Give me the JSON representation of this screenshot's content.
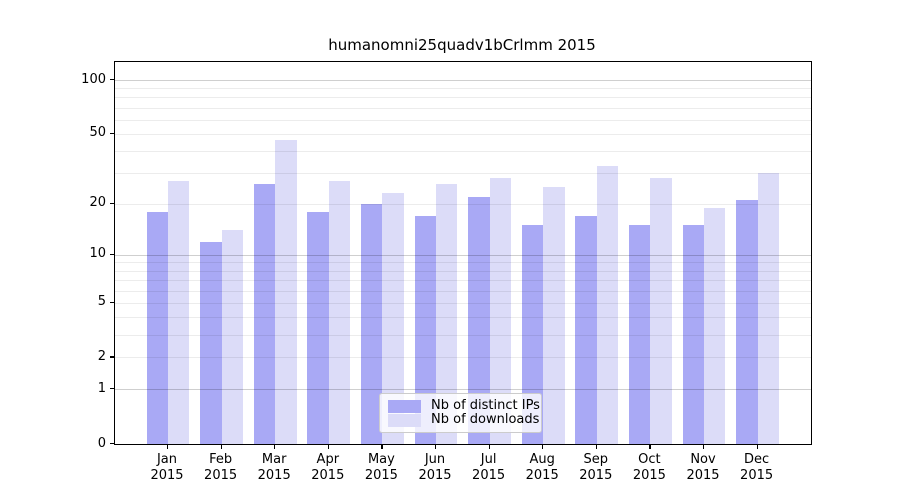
{
  "chart_data": {
    "type": "bar",
    "title": "humanomni25quadv1bCrlmm 2015",
    "categories": [
      "Jan",
      "Feb",
      "Mar",
      "Apr",
      "May",
      "Jun",
      "Jul",
      "Aug",
      "Sep",
      "Oct",
      "Nov",
      "Dec"
    ],
    "x_tick_year": "2015",
    "series": [
      {
        "name": "Nb of distinct IPs",
        "color": "#a9a9f5",
        "values": [
          18,
          12,
          26,
          18,
          20,
          17,
          22,
          15,
          17,
          15,
          15,
          21
        ]
      },
      {
        "name": "Nb of downloads",
        "color": "#dcdcf8",
        "values": [
          27,
          14,
          46,
          27,
          23,
          26,
          28,
          25,
          33,
          28,
          19,
          30
        ]
      }
    ],
    "yscale": "log1p",
    "ytick_labels": [
      0,
      1,
      2,
      5,
      10,
      20,
      50,
      100
    ],
    "ylim": [
      0,
      127
    ],
    "grid_major_values": [
      1,
      10,
      100
    ],
    "grid_minor_values": [
      2,
      3,
      4,
      5,
      6,
      7,
      8,
      9,
      20,
      30,
      40,
      50,
      60,
      70,
      80,
      90
    ],
    "legend_position": "lower center"
  },
  "colors": {
    "background": "#ffffff",
    "bar_distinct_ips": "#a9a9f5",
    "bar_downloads": "#dcdcf8",
    "axis": "#000000",
    "grid_major": "#d0d0d0",
    "grid_minor": "#ececec",
    "legend_border": "#cccccc"
  }
}
